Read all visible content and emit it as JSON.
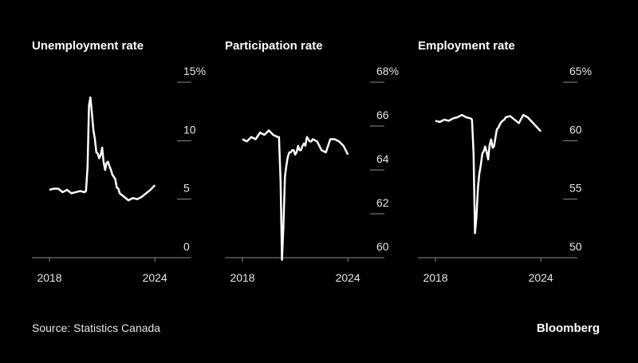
{
  "chart_data": [
    {
      "type": "line",
      "title": "Unemployment rate",
      "x": [
        2018,
        2018.25,
        2018.5,
        2018.75,
        2019,
        2019.25,
        2019.5,
        2019.75,
        2020,
        2020.08,
        2020.17,
        2020.25,
        2020.33,
        2020.42,
        2020.5,
        2020.58,
        2020.67,
        2020.75,
        2020.83,
        2020.92,
        2021,
        2021.08,
        2021.17,
        2021.25,
        2021.33,
        2021.42,
        2021.5,
        2021.58,
        2021.67,
        2021.75,
        2021.83,
        2021.92,
        2022,
        2022.25,
        2022.5,
        2022.75,
        2023,
        2023.25,
        2023.5,
        2023.75,
        2024
      ],
      "series": [
        {
          "color": "#ffffff",
          "values": [
            5.8,
            5.9,
            5.9,
            5.6,
            5.8,
            5.5,
            5.6,
            5.7,
            5.6,
            5.7,
            7.8,
            13.0,
            13.7,
            12.3,
            10.9,
            10.2,
            9.0,
            8.9,
            8.5,
            8.8,
            9.4,
            8.2,
            7.5,
            8.1,
            8.2,
            7.8,
            7.5,
            7.1,
            6.9,
            6.7,
            6.0,
            5.9,
            5.5,
            5.2,
            4.9,
            5.1,
            5.0,
            5.2,
            5.5,
            5.8,
            6.2
          ]
        }
      ],
      "xlim": [
        2017,
        2025.4
      ],
      "xticks": [
        2018,
        2024
      ],
      "ylim": [
        0,
        15
      ],
      "yticks": [
        0,
        5,
        10,
        {
          "value": 15,
          "label": "15%"
        }
      ]
    },
    {
      "type": "line",
      "title": "Participation rate",
      "x": [
        2018,
        2018.25,
        2018.5,
        2018.75,
        2019,
        2019.25,
        2019.5,
        2019.75,
        2020,
        2020.08,
        2020.17,
        2020.25,
        2020.33,
        2020.42,
        2020.5,
        2020.58,
        2020.67,
        2020.75,
        2020.83,
        2020.92,
        2021,
        2021.08,
        2021.17,
        2021.25,
        2021.33,
        2021.42,
        2021.5,
        2021.58,
        2021.67,
        2021.75,
        2021.83,
        2021.92,
        2022,
        2022.25,
        2022.5,
        2022.75,
        2023,
        2023.25,
        2023.5,
        2023.75,
        2024
      ],
      "series": [
        {
          "color": "#ffffff",
          "values": [
            65.4,
            65.3,
            65.5,
            65.4,
            65.7,
            65.6,
            65.8,
            65.6,
            65.5,
            65.5,
            63.5,
            59.9,
            61.4,
            63.7,
            64.2,
            64.6,
            64.8,
            64.8,
            64.9,
            64.9,
            64.7,
            64.8,
            65.1,
            64.9,
            64.9,
            65.1,
            65.2,
            65.1,
            65.5,
            65.4,
            65.3,
            65.3,
            65.4,
            65.3,
            64.9,
            64.8,
            65.4,
            65.4,
            65.3,
            65.1,
            64.7
          ]
        }
      ],
      "xlim": [
        2017,
        2025.4
      ],
      "xticks": [
        2018,
        2024
      ],
      "ylim": [
        60,
        68
      ],
      "yticks": [
        60,
        62,
        64,
        66,
        {
          "value": 68,
          "label": "68%"
        }
      ]
    },
    {
      "type": "line",
      "title": "Employment rate",
      "x": [
        2018,
        2018.25,
        2018.5,
        2018.75,
        2019,
        2019.25,
        2019.5,
        2019.75,
        2020,
        2020.08,
        2020.17,
        2020.25,
        2020.33,
        2020.42,
        2020.5,
        2020.58,
        2020.67,
        2020.75,
        2020.83,
        2020.92,
        2021,
        2021.08,
        2021.17,
        2021.25,
        2021.33,
        2021.42,
        2021.5,
        2021.58,
        2021.67,
        2021.75,
        2021.83,
        2021.92,
        2022,
        2022.25,
        2022.5,
        2022.75,
        2023,
        2023.25,
        2023.5,
        2023.75,
        2024
      ],
      "series": [
        {
          "color": "#ffffff",
          "values": [
            61.7,
            61.6,
            61.8,
            61.7,
            61.9,
            62.0,
            62.2,
            62.0,
            61.9,
            61.8,
            58.9,
            52.1,
            53.4,
            56.0,
            57.2,
            57.9,
            58.9,
            59.1,
            59.5,
            59.0,
            58.4,
            59.6,
            60.1,
            59.4,
            59.5,
            60.3,
            61.0,
            61.1,
            61.4,
            61.6,
            61.7,
            61.8,
            62.0,
            62.1,
            61.8,
            61.5,
            62.2,
            62.0,
            61.6,
            61.2,
            60.8
          ]
        }
      ],
      "xlim": [
        2017,
        2025.4
      ],
      "xticks": [
        2018,
        2024
      ],
      "ylim": [
        50,
        65
      ],
      "yticks": [
        50,
        55,
        60,
        {
          "value": 65,
          "label": "65%"
        }
      ]
    }
  ],
  "source": "Source: Statistics Canada",
  "logo": "Bloomberg"
}
